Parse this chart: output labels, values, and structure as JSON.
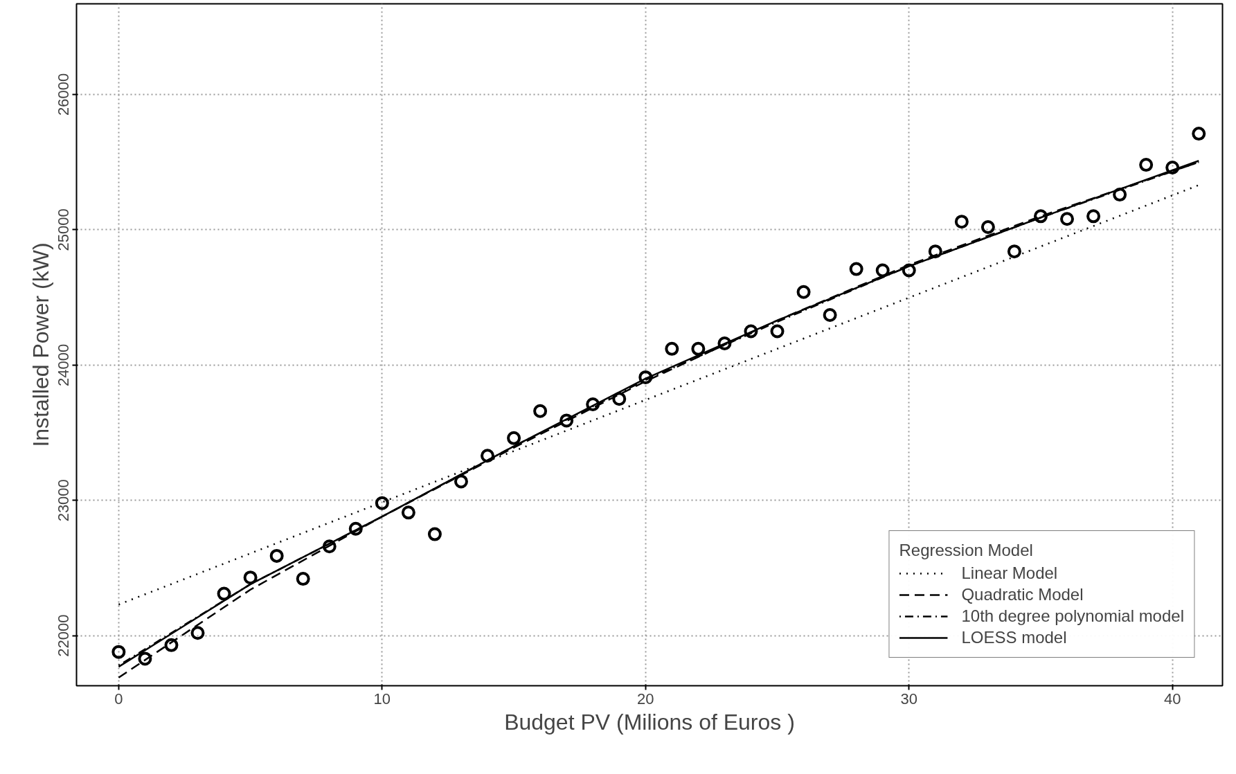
{
  "chart_data": {
    "type": "scatter",
    "xlabel": "Budget PV (Milions of Euros )",
    "ylabel": "Installed Power (kW)",
    "legend_title": "Regression Model",
    "legend": "bottom right",
    "grid": true,
    "xlim": [
      -1.6,
      41.9
    ],
    "ylim": [
      21630,
      26670
    ],
    "xticks": [
      0,
      10,
      20,
      30,
      40
    ],
    "yticks": [
      22000,
      23000,
      24000,
      25000,
      26000
    ],
    "series": [
      {
        "marker": "circle",
        "color": "#000000",
        "x": [
          0,
          1,
          2,
          3,
          4,
          5,
          6,
          7,
          8,
          9,
          10,
          11,
          12,
          13,
          14,
          15,
          16,
          17,
          18,
          19,
          20,
          21,
          22,
          23,
          24,
          25,
          26,
          27,
          28,
          29,
          30,
          31,
          32,
          33,
          34,
          35,
          36,
          37,
          38,
          39,
          40,
          41
        ],
        "values": [
          21880,
          21830,
          21930,
          22020,
          22310,
          22430,
          22590,
          22420,
          22660,
          22790,
          22980,
          22910,
          22750,
          23140,
          23330,
          23460,
          23660,
          23590,
          23710,
          23750,
          23910,
          24120,
          24120,
          24160,
          24250,
          24250,
          24540,
          24370,
          24710,
          24700,
          24700,
          24840,
          25060,
          25020,
          24840,
          25100,
          25080,
          25100,
          25260,
          25480,
          25460,
          25710
        ]
      },
      {
        "type": "line",
        "name": "Linear Model",
        "line_style": "dotted",
        "color": "#000000",
        "x": [
          0,
          41
        ],
        "values": [
          22230,
          25330
        ]
      },
      {
        "type": "line",
        "name": "Quadratic Model",
        "line_style": "dashed",
        "color": "#000000",
        "x": [
          0,
          5,
          10,
          15,
          20,
          25,
          30,
          35,
          41
        ],
        "values": [
          21690,
          22340,
          22880,
          23390,
          23880,
          24330,
          24740,
          25100,
          25500
        ]
      },
      {
        "type": "line",
        "name": "10th degree polynomial model",
        "line_style": "dashdot",
        "color": "#000000",
        "x": [
          0,
          5,
          10,
          15,
          20,
          25,
          30,
          35,
          41
        ],
        "values": [
          21780,
          22380,
          22880,
          23400,
          23890,
          24320,
          24730,
          25090,
          25500
        ]
      },
      {
        "type": "line",
        "name": "LOESS model",
        "line_style": "solid",
        "color": "#000000",
        "x": [
          0,
          5,
          10,
          15,
          20,
          25,
          30,
          35,
          41
        ],
        "values": [
          21770,
          22380,
          22880,
          23400,
          23900,
          24330,
          24730,
          25090,
          25510
        ]
      }
    ]
  }
}
